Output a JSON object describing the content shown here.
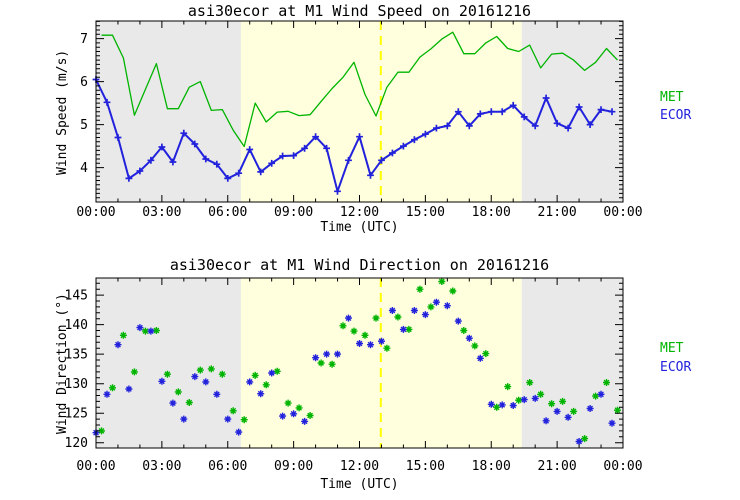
{
  "page": {
    "background": "#ffffff"
  },
  "colors": {
    "met_green": "#00b400",
    "ecor_blue": "#2222dd",
    "night_shade": "#e9e9e9",
    "day_shade": "#ffffdd",
    "noon_line_yellow": "#ffff00",
    "axis_black": "#000000"
  },
  "legend": {
    "met_label": "MET",
    "ecor_label": "ECOR"
  },
  "chart_data": [
    {
      "name": "wind-speed",
      "type": "line",
      "title": "asi30ecor at M1 Wind Speed on 20161216",
      "xlabel": "Time (UTC)",
      "ylabel": "Wind Speed (m/s)",
      "xlim": [
        0,
        24
      ],
      "ylim": [
        3.2,
        7.41
      ],
      "xticks": {
        "major_hours": [
          0,
          3,
          6,
          9,
          12,
          15,
          18,
          21,
          24
        ],
        "labels": [
          "00:00",
          "03:00",
          "06:00",
          "09:00",
          "12:00",
          "15:00",
          "18:00",
          "21:00",
          "00:00"
        ],
        "minor_every_hours": 1
      },
      "yticks": {
        "major": [
          4,
          5,
          6,
          7
        ],
        "minor_every": 0.1
      },
      "grid": false,
      "legend_position": "right-outside",
      "shading": {
        "day_start_hour": 6.6,
        "day_end_hour": 19.39,
        "day_color": "#ffffdd",
        "night_color": "#e9e9e9"
      },
      "vline": {
        "x_hour": 12.97,
        "color": "#ffff00",
        "style": "dashed"
      },
      "series": [
        {
          "name": "MET",
          "color": "#00b400",
          "line": true,
          "line_width": 1.3,
          "marker": "none",
          "times": [
            0.25,
            0.75,
            1.25,
            1.75,
            2.25,
            2.75,
            3.25,
            3.75,
            4.25,
            4.75,
            5.25,
            5.75,
            6.25,
            6.75,
            7.25,
            7.75,
            8.25,
            8.75,
            9.25,
            9.75,
            10.25,
            10.75,
            11.25,
            11.75,
            12.25,
            12.75,
            13.25,
            13.75,
            14.25,
            14.75,
            15.25,
            15.75,
            16.25,
            16.75,
            17.25,
            17.75,
            18.25,
            18.75,
            19.25,
            19.75,
            20.25,
            20.75,
            21.25,
            21.75,
            22.25,
            22.75,
            23.25,
            23.75
          ],
          "values": [
            7.08,
            7.08,
            6.55,
            5.22,
            5.82,
            6.42,
            5.37,
            5.37,
            5.87,
            6.0,
            5.33,
            5.35,
            4.87,
            4.49,
            5.5,
            5.06,
            5.29,
            5.31,
            5.21,
            5.23,
            5.54,
            5.84,
            6.1,
            6.45,
            5.7,
            5.2,
            5.87,
            6.22,
            6.22,
            6.57,
            6.76,
            6.99,
            7.15,
            6.65,
            6.65,
            6.9,
            7.05,
            6.77,
            6.7,
            6.85,
            6.32,
            6.64,
            6.66,
            6.5,
            6.26,
            6.45,
            6.77,
            6.5
          ]
        },
        {
          "name": "ECOR",
          "color": "#2222dd",
          "line": true,
          "line_width": 2,
          "marker": "plus",
          "times": [
            0,
            0.5,
            1,
            1.5,
            2,
            2.5,
            3,
            3.5,
            4,
            4.5,
            5,
            5.5,
            6,
            6.5,
            7,
            7.5,
            8,
            8.5,
            9,
            9.5,
            10,
            10.5,
            11,
            11.5,
            12,
            12.5,
            13,
            13.5,
            14,
            14.5,
            15,
            15.5,
            16,
            16.5,
            17,
            17.5,
            18,
            18.5,
            19,
            19.5,
            20,
            20.5,
            21,
            21.5,
            22,
            22.5,
            23,
            23.5
          ],
          "values": [
            6.05,
            5.52,
            4.7,
            3.75,
            3.92,
            4.17,
            4.48,
            4.13,
            4.8,
            4.55,
            4.2,
            4.08,
            3.75,
            3.87,
            4.42,
            3.9,
            4.1,
            4.27,
            4.28,
            4.45,
            4.72,
            4.45,
            3.45,
            4.17,
            4.72,
            3.82,
            4.17,
            4.34,
            4.5,
            4.65,
            4.78,
            4.92,
            4.97,
            5.3,
            4.97,
            5.25,
            5.3,
            5.3,
            5.45,
            5.18,
            4.97,
            5.62,
            5.03,
            4.92,
            5.41,
            5.0,
            5.35,
            5.3
          ]
        }
      ]
    },
    {
      "name": "wind-direction",
      "type": "scatter",
      "title": "asi30ecor at M1 Wind Direction on 20161216",
      "xlabel": "Time (UTC)",
      "ylabel": "Wind Direction (°)",
      "xlim": [
        0,
        24
      ],
      "ylim": [
        119.1,
        147.9
      ],
      "xticks": {
        "major_hours": [
          0,
          3,
          6,
          9,
          12,
          15,
          18,
          21,
          24
        ],
        "labels": [
          "00:00",
          "03:00",
          "06:00",
          "09:00",
          "12:00",
          "15:00",
          "18:00",
          "21:00",
          "00:00"
        ],
        "minor_every_hours": 1
      },
      "yticks": {
        "major": [
          120,
          125,
          130,
          135,
          140,
          145
        ],
        "minor_every": 1
      },
      "grid": false,
      "legend_position": "right-outside",
      "shading": {
        "day_start_hour": 6.6,
        "day_end_hour": 19.39,
        "day_color": "#ffffdd",
        "night_color": "#e9e9e9"
      },
      "vline": {
        "x_hour": 12.97,
        "color": "#ffff00",
        "style": "dashed"
      },
      "series": [
        {
          "name": "MET",
          "color": "#00b400",
          "line": false,
          "marker": "asterisk",
          "times": [
            0.25,
            0.75,
            1.25,
            1.75,
            2.25,
            2.75,
            3.25,
            3.75,
            4.25,
            4.75,
            5.25,
            5.75,
            6.25,
            6.75,
            7.25,
            7.75,
            8.25,
            8.75,
            9.25,
            9.75,
            10.25,
            10.75,
            11.25,
            11.75,
            12.25,
            12.75,
            13.25,
            13.75,
            14.25,
            14.75,
            15.25,
            15.75,
            16.25,
            16.75,
            17.25,
            17.75,
            18.25,
            18.75,
            19.25,
            19.75,
            20.25,
            20.75,
            21.25,
            21.75,
            22.25,
            22.75,
            23.25,
            23.75
          ],
          "values": [
            122.0,
            129.3,
            138.2,
            132.0,
            138.9,
            139.0,
            131.6,
            128.6,
            126.8,
            132.3,
            132.5,
            131.6,
            125.4,
            123.9,
            131.4,
            129.8,
            132.1,
            126.7,
            125.9,
            124.6,
            133.5,
            133.3,
            139.8,
            138.9,
            138.2,
            141.1,
            136.0,
            141.3,
            139.2,
            146.0,
            143.0,
            147.3,
            145.7,
            139.0,
            136.4,
            135.1,
            126.0,
            129.5,
            127.2,
            130.2,
            128.2,
            126.6,
            127.0,
            125.3,
            120.7,
            127.9,
            130.2,
            125.5
          ]
        },
        {
          "name": "ECOR",
          "color": "#2222dd",
          "line": false,
          "marker": "asterisk",
          "times": [
            0,
            0.5,
            1,
            1.5,
            2,
            2.5,
            3,
            3.5,
            4,
            4.5,
            5,
            5.5,
            6,
            6.5,
            7,
            7.5,
            8,
            8.5,
            9,
            9.5,
            10,
            10.5,
            11,
            11.5,
            12,
            12.5,
            13,
            13.5,
            14,
            14.5,
            15,
            15.5,
            16,
            16.5,
            17,
            17.5,
            18,
            18.5,
            19,
            19.5,
            20,
            20.5,
            21,
            21.5,
            22,
            22.5,
            23,
            23.5
          ],
          "values": [
            121.7,
            128.2,
            136.6,
            129.1,
            139.5,
            138.9,
            130.4,
            126.7,
            124.0,
            131.2,
            130.3,
            128.2,
            124.0,
            121.8,
            130.3,
            128.3,
            131.8,
            124.5,
            124.9,
            123.6,
            134.4,
            135.0,
            135.0,
            141.1,
            136.8,
            136.6,
            137.2,
            142.4,
            139.2,
            142.4,
            141.7,
            143.8,
            143.2,
            140.6,
            137.7,
            134.3,
            126.5,
            126.4,
            126.3,
            127.3,
            127.5,
            123.7,
            125.3,
            124.3,
            120.2,
            125.8,
            128.2,
            123.3
          ]
        }
      ]
    }
  ]
}
